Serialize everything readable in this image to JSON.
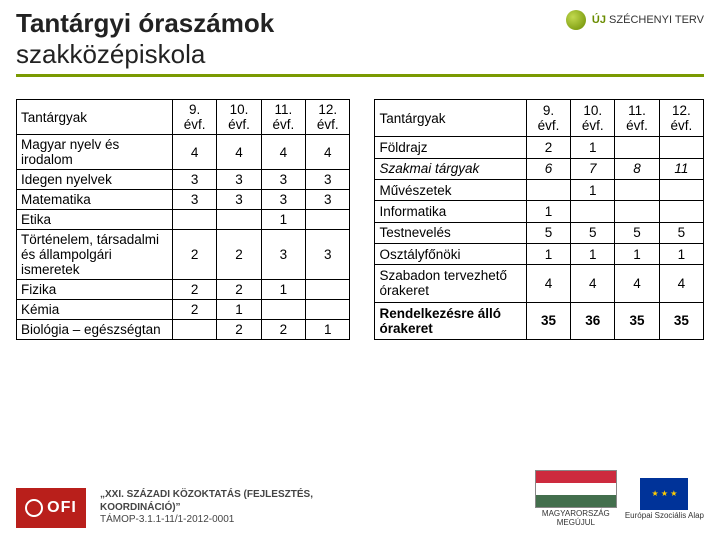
{
  "title": {
    "line1": "Tantárgyi óraszámok",
    "line2": "szakközépiskola"
  },
  "top_logo": {
    "prefix": "ÚJ",
    "name": "SZÉCHENYI TERV"
  },
  "tables": {
    "header_subject": "Tantárgyak",
    "cols": [
      "9. évf.",
      "10. évf.",
      "11. évf.",
      "12. évf."
    ],
    "left": [
      {
        "label": "Magyar nyelv és irodalom",
        "v": [
          "4",
          "4",
          "4",
          "4"
        ]
      },
      {
        "label": "Idegen nyelvek",
        "v": [
          "3",
          "3",
          "3",
          "3"
        ]
      },
      {
        "label": "Matematika",
        "v": [
          "3",
          "3",
          "3",
          "3"
        ]
      },
      {
        "label": "Etika",
        "v": [
          "",
          "",
          "1",
          ""
        ]
      },
      {
        "label": "Történelem, társadalmi és állampolgári ismeretek",
        "v": [
          "2",
          "2",
          "3",
          "3"
        ]
      },
      {
        "label": "Fizika",
        "v": [
          "2",
          "2",
          "1",
          ""
        ]
      },
      {
        "label": "Kémia",
        "v": [
          "2",
          "1",
          "",
          ""
        ]
      },
      {
        "label": "Biológia – egészségtan",
        "v": [
          "",
          "2",
          "2",
          "1"
        ]
      }
    ],
    "right": [
      {
        "label": "Földrajz",
        "v": [
          "2",
          "1",
          "",
          ""
        ]
      },
      {
        "label": "Szakmai tárgyak",
        "v": [
          "6",
          "7",
          "8",
          "11"
        ],
        "italic": true
      },
      {
        "label": "Művészetek",
        "v": [
          "",
          "1",
          "",
          ""
        ]
      },
      {
        "label": "Informatika",
        "v": [
          "1",
          "",
          "",
          ""
        ]
      },
      {
        "label": "Testnevelés",
        "v": [
          "5",
          "5",
          "5",
          "5"
        ]
      },
      {
        "label": "Osztályfőnöki",
        "v": [
          "1",
          "1",
          "1",
          "1"
        ]
      },
      {
        "label": "Szabadon tervezhető órakeret",
        "v": [
          "4",
          "4",
          "4",
          "4"
        ]
      },
      {
        "label": "Rendelkezésre álló órakeret",
        "v": [
          "35",
          "36",
          "35",
          "35"
        ],
        "bold": true
      }
    ]
  },
  "footer": {
    "ofi": "OFI",
    "project_line1": "„XXI. SZÁZADI KÖZOKTATÁS (FEJLESZTÉS,",
    "project_line2": "KOORDINÁCIÓ)”",
    "project_code": "TÁMOP-3.1.1-11/1-2012-0001",
    "hu_label": "MAGYARORSZÁG MEGÚJUL",
    "eu_label": "Európai Szociális Alap"
  },
  "colors": {
    "accent_green": "#7a9a01",
    "ofi_red": "#b91f1b"
  }
}
